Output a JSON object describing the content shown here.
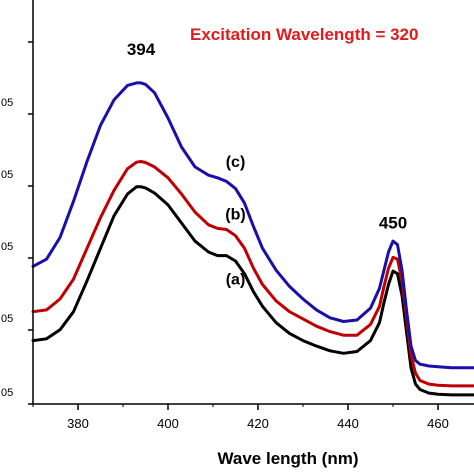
{
  "chart_data": {
    "type": "line",
    "title": "Excitation Wavelength = 320",
    "title_color": "#e31a1c",
    "xlabel": "Wave length (nm)",
    "ylabel": "",
    "xlim": [
      370,
      468
    ],
    "ylim": [
      0,
      1
    ],
    "x_ticks": [
      380,
      400,
      420,
      440,
      460
    ],
    "y_tick_labels": [
      "05",
      "05",
      "05",
      "05",
      "05"
    ],
    "y_tick_values": [
      0.0,
      0.2,
      0.4,
      0.6,
      0.8
    ],
    "grid": false,
    "annotations": [
      {
        "text": "394",
        "x": 394,
        "y": 0.97
      },
      {
        "text": "450",
        "x": 450,
        "y": 0.49
      }
    ],
    "series": [
      {
        "name": "(a)",
        "color": "#000000",
        "label_at": {
          "x": 415,
          "y": 0.33
        },
        "x": [
          370,
          373,
          376,
          379,
          382,
          385,
          388,
          391,
          393,
          394,
          395,
          397,
          400,
          403,
          406,
          409,
          411,
          413,
          415,
          417,
          419,
          421,
          424,
          427,
          430,
          433,
          436,
          439,
          442,
          445,
          447,
          448,
          449,
          450,
          451,
          452,
          453,
          454,
          455,
          456,
          458,
          460,
          463,
          466,
          468
        ],
        "y": [
          0.175,
          0.18,
          0.205,
          0.255,
          0.34,
          0.43,
          0.52,
          0.58,
          0.6,
          0.6,
          0.597,
          0.583,
          0.55,
          0.5,
          0.45,
          0.42,
          0.41,
          0.41,
          0.395,
          0.36,
          0.31,
          0.27,
          0.225,
          0.195,
          0.175,
          0.16,
          0.147,
          0.14,
          0.145,
          0.175,
          0.225,
          0.28,
          0.33,
          0.367,
          0.36,
          0.3,
          0.2,
          0.1,
          0.055,
          0.04,
          0.03,
          0.027,
          0.025,
          0.025,
          0.025
        ]
      },
      {
        "name": "(b)",
        "color": "#c00000",
        "label_at": {
          "x": 415,
          "y": 0.51
        },
        "x": [
          370,
          373,
          376,
          379,
          382,
          385,
          388,
          391,
          393,
          394,
          395,
          397,
          400,
          403,
          406,
          409,
          411,
          413,
          415,
          417,
          419,
          421,
          424,
          427,
          430,
          433,
          436,
          439,
          442,
          445,
          447,
          448,
          449,
          450,
          451,
          452,
          453,
          454,
          455,
          456,
          458,
          460,
          463,
          466,
          468
        ],
        "y": [
          0.255,
          0.26,
          0.29,
          0.345,
          0.43,
          0.515,
          0.59,
          0.65,
          0.668,
          0.67,
          0.667,
          0.655,
          0.625,
          0.58,
          0.53,
          0.495,
          0.485,
          0.482,
          0.465,
          0.43,
          0.375,
          0.33,
          0.285,
          0.255,
          0.235,
          0.215,
          0.2,
          0.19,
          0.19,
          0.22,
          0.27,
          0.325,
          0.375,
          0.405,
          0.4,
          0.34,
          0.24,
          0.135,
          0.085,
          0.065,
          0.055,
          0.052,
          0.05,
          0.05,
          0.05
        ]
      },
      {
        "name": "(c)",
        "color": "#1a0fa8",
        "label_at": {
          "x": 415,
          "y": 0.655
        },
        "x": [
          370,
          373,
          376,
          379,
          382,
          385,
          388,
          391,
          393,
          394,
          395,
          397,
          400,
          403,
          406,
          409,
          411,
          413,
          415,
          417,
          419,
          421,
          424,
          427,
          430,
          433,
          436,
          439,
          442,
          445,
          447,
          448,
          449,
          450,
          451,
          452,
          453,
          454,
          455,
          456,
          458,
          460,
          463,
          466,
          468
        ],
        "y": [
          0.38,
          0.4,
          0.46,
          0.56,
          0.67,
          0.77,
          0.84,
          0.88,
          0.887,
          0.887,
          0.883,
          0.86,
          0.79,
          0.71,
          0.655,
          0.632,
          0.625,
          0.615,
          0.595,
          0.555,
          0.49,
          0.43,
          0.37,
          0.325,
          0.29,
          0.26,
          0.238,
          0.228,
          0.232,
          0.265,
          0.32,
          0.37,
          0.42,
          0.45,
          0.44,
          0.37,
          0.26,
          0.16,
          0.12,
          0.11,
          0.105,
          0.103,
          0.1,
          0.1,
          0.1
        ]
      }
    ]
  }
}
